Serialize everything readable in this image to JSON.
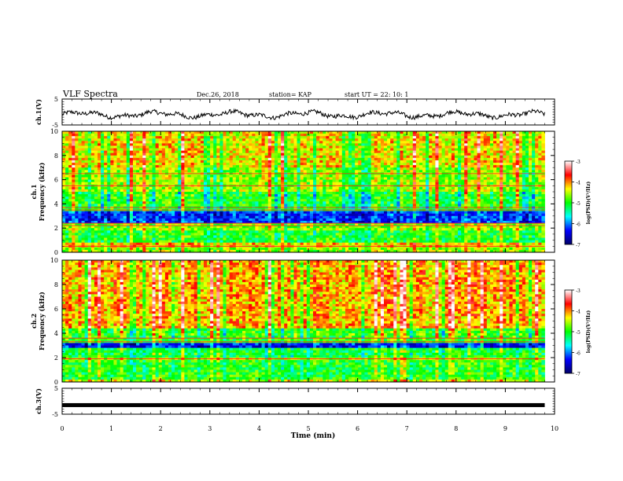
{
  "header": {
    "title": "VLF Spectra",
    "date": "Dec.26, 2018",
    "station": "station= KAP",
    "start": "start  UT =   22: 10: 1"
  },
  "chart_data": [
    {
      "type": "line",
      "name": "ch1-waveform",
      "ylabel": "ch.1(V)",
      "ylim": [
        -5,
        5
      ],
      "yticks": [
        "5",
        "-5"
      ],
      "xlim": [
        0,
        10
      ],
      "x_end": 9.8,
      "baseline": -1.0,
      "amplitude": 1.6,
      "color": "#000000"
    },
    {
      "type": "heatmap",
      "name": "ch1-spectrogram",
      "ylabel": "ch.1\nFrequency (kHz)",
      "ylim": [
        0,
        10
      ],
      "yticks": [
        "0",
        "2",
        "4",
        "6",
        "8",
        "10"
      ],
      "xlim": [
        0,
        10
      ],
      "x_end": 9.8,
      "levels": [
        {
          "f0": 0.0,
          "f1": 0.4,
          "level": -4.6
        },
        {
          "f0": 0.4,
          "f1": 0.8,
          "level": -4.2
        },
        {
          "f0": 0.8,
          "f1": 1.8,
          "level": -5.0
        },
        {
          "f0": 1.8,
          "f1": 2.5,
          "level": -4.6
        },
        {
          "f0": 2.5,
          "f1": 3.5,
          "level": -6.2
        },
        {
          "f0": 3.5,
          "f1": 5.0,
          "level": -5.0
        },
        {
          "f0": 5.0,
          "f1": 7.0,
          "level": -4.6
        },
        {
          "f0": 7.0,
          "f1": 10.0,
          "level": -4.3
        }
      ],
      "lines": [
        0.5,
        2.2,
        2.4,
        3.5,
        3.7,
        5.5,
        6.5
      ]
    },
    {
      "type": "heatmap",
      "name": "ch2-spectrogram",
      "ylabel": "ch.2\nFrequency (kHz)",
      "ylim": [
        0,
        10
      ],
      "yticks": [
        "0",
        "2",
        "4",
        "6",
        "8",
        "10"
      ],
      "xlim": [
        0,
        10
      ],
      "x_end": 9.8,
      "levels": [
        {
          "f0": 0.0,
          "f1": 0.3,
          "level": -4.4
        },
        {
          "f0": 0.3,
          "f1": 1.8,
          "level": -5.0
        },
        {
          "f0": 1.8,
          "f1": 2.0,
          "level": -4.5
        },
        {
          "f0": 2.0,
          "f1": 2.8,
          "level": -5.1
        },
        {
          "f0": 2.8,
          "f1": 3.3,
          "level": -6.3
        },
        {
          "f0": 3.3,
          "f1": 4.5,
          "level": -4.9
        },
        {
          "f0": 4.5,
          "f1": 10.0,
          "level": -4.1
        }
      ],
      "lines": [
        1.9,
        3.3,
        3.6
      ]
    },
    {
      "type": "line",
      "name": "ch3-waveform",
      "ylabel": "ch.3(V)",
      "ylim": [
        -5,
        5
      ],
      "yticks": [
        "5",
        "-5"
      ],
      "xlim": [
        0,
        10
      ],
      "x_end": 9.8,
      "level": -1.5,
      "color": "#000000"
    }
  ],
  "colorbar": {
    "label": "log(PSD)(V²/Hz)",
    "range": [
      -7,
      -3
    ],
    "ticks": [
      "-3",
      "-4",
      "-5",
      "-6",
      "-7"
    ],
    "colors": [
      "#000066",
      "#0000ff",
      "#00ffff",
      "#00ff00",
      "#ffff00",
      "#ff0000",
      "#ffffff"
    ]
  },
  "x_axis": {
    "label": "Time  (min)",
    "ticks": [
      "0",
      "1",
      "2",
      "3",
      "4",
      "5",
      "6",
      "7",
      "8",
      "9",
      "10"
    ],
    "range": [
      0,
      10
    ]
  }
}
